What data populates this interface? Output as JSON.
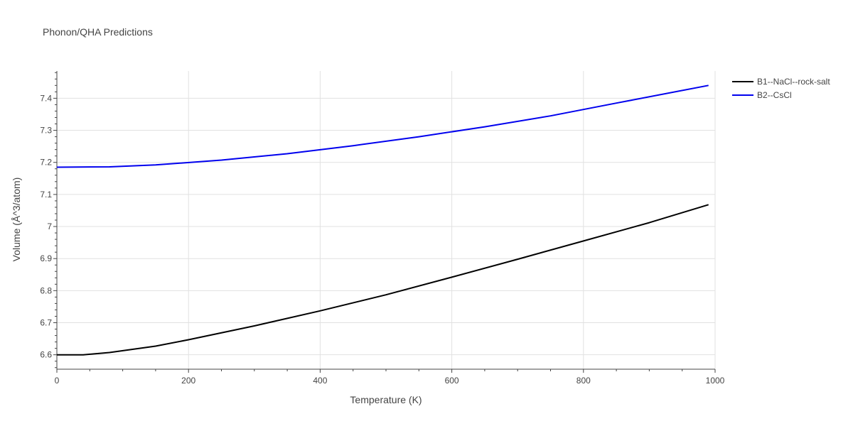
{
  "chart_data": {
    "type": "line",
    "title": "Phonon/QHA Predictions",
    "xlabel": "Temperature (K)",
    "ylabel": "Volume (Å^3/atom)",
    "xlim": [
      0,
      1000
    ],
    "ylim": [
      6.555,
      7.485
    ],
    "xticks": [
      0,
      200,
      400,
      600,
      800,
      1000
    ],
    "xtick_labels": [
      "0",
      "200",
      "400",
      "600",
      "800",
      "1000"
    ],
    "yticks": [
      6.6,
      6.7,
      6.8,
      6.9,
      7.0,
      7.1,
      7.2,
      7.3,
      7.4
    ],
    "ytick_labels": [
      "6.6",
      "6.7",
      "6.8",
      "6.9",
      "7",
      "7.1",
      "7.2",
      "7.3",
      "7.4"
    ],
    "grid": true,
    "legend_position": "top-right",
    "series": [
      {
        "name": "B1--NaCl--rock-salt",
        "color": "#000000",
        "x": [
          0,
          40,
          80,
          150,
          200,
          300,
          400,
          500,
          600,
          700,
          800,
          900,
          990
        ],
        "y": [
          6.6,
          6.6,
          6.607,
          6.627,
          6.647,
          6.69,
          6.737,
          6.787,
          6.842,
          6.898,
          6.955,
          7.012,
          7.068
        ]
      },
      {
        "name": "B2--CsCl",
        "color": "#0000ee",
        "x": [
          0,
          80,
          150,
          250,
          350,
          450,
          550,
          650,
          750,
          850,
          990
        ],
        "y": [
          7.185,
          7.186,
          7.192,
          7.207,
          7.227,
          7.252,
          7.28,
          7.311,
          7.345,
          7.385,
          7.44
        ]
      }
    ]
  }
}
